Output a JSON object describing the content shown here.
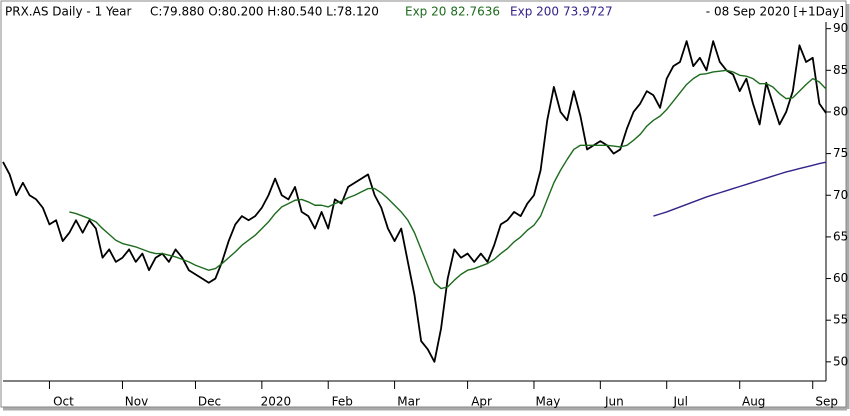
{
  "chart_data": {
    "type": "line",
    "title": "PRX.AS Daily - 1 Year",
    "ohlc": "C:79.880 O:80.200 H:80.540 L:78.120",
    "date": "- 08 Sep 2020",
    "period": "[+1Day]",
    "categories": [
      null,
      null,
      null,
      null,
      null,
      null,
      null,
      "Oct",
      null,
      null,
      null,
      null,
      null,
      null,
      null,
      null,
      null,
      null,
      "Nov",
      null,
      null,
      null,
      null,
      null,
      null,
      null,
      null,
      null,
      null,
      "Dec",
      null,
      null,
      null,
      null,
      null,
      null,
      null,
      null,
      null,
      "2020",
      null,
      null,
      null,
      null,
      null,
      null,
      null,
      null,
      null,
      "Feb",
      null,
      null,
      null,
      null,
      null,
      null,
      null,
      null,
      null,
      "Mar",
      null,
      null,
      null,
      null,
      null,
      null,
      null,
      null,
      null,
      null,
      "Apr",
      null,
      null,
      null,
      null,
      null,
      null,
      null,
      null,
      null,
      "May",
      null,
      null,
      null,
      null,
      null,
      null,
      null,
      null,
      null,
      "Jun",
      null,
      null,
      null,
      null,
      null,
      null,
      null,
      null,
      null,
      "Jul",
      null,
      null,
      null,
      null,
      null,
      null,
      null,
      null,
      null,
      null,
      "Aug",
      null,
      null,
      null,
      null,
      null,
      null,
      null,
      null,
      null,
      null,
      "Sep",
      null,
      null
    ],
    "series": [
      {
        "color": "#000000",
        "values": [
          74,
          72.5,
          70,
          71.5,
          70,
          69.5,
          68.5,
          66.5,
          67,
          64.5,
          65.5,
          67,
          65.5,
          67,
          66,
          62.5,
          63.5,
          62,
          62.5,
          63.5,
          62,
          63,
          61,
          62.5,
          63,
          62,
          63.5,
          62.5,
          61,
          60.5,
          60,
          59.5,
          60,
          62,
          64.5,
          66.5,
          67.5,
          67,
          67.5,
          68.5,
          70,
          72,
          70,
          69.5,
          71,
          68,
          67.5,
          66,
          68,
          66,
          69.5,
          69,
          71,
          71.5,
          72,
          72.5,
          70,
          68.5,
          66,
          64.5,
          66,
          62,
          58,
          52.5,
          51.5,
          50,
          54,
          60,
          63.5,
          62.5,
          63,
          62,
          63,
          62,
          64,
          66.5,
          67,
          68,
          67.5,
          69,
          70,
          73,
          79,
          83,
          80,
          79,
          82.5,
          79.5,
          75.5,
          76,
          76.5,
          76,
          75,
          75.5,
          78,
          80,
          81,
          82.5,
          82,
          80.5,
          84,
          85.5,
          86,
          88.5,
          85.5,
          86.5,
          85,
          88.5,
          86,
          85,
          84.5,
          82.5,
          84,
          81,
          78.5,
          83.5,
          81,
          78.5,
          80,
          82.5,
          88,
          86,
          86.5,
          81,
          79.88
        ]
      },
      {
        "name": "Exp 20",
        "value_label": "82.7636",
        "color": "#1e6b1e",
        "values": [
          null,
          null,
          null,
          null,
          null,
          null,
          null,
          null,
          null,
          null,
          68,
          67.8,
          67.5,
          67.2,
          66.8,
          66,
          65.3,
          64.6,
          64.2,
          64,
          63.8,
          63.5,
          63.2,
          63,
          63,
          62.8,
          62.6,
          62.3,
          62,
          61.6,
          61.3,
          61,
          61.2,
          61.8,
          62.5,
          63.2,
          64,
          64.6,
          65.2,
          66,
          66.8,
          67.8,
          68.6,
          69,
          69.4,
          69.5,
          69.2,
          68.8,
          68.8,
          68.6,
          69,
          69.3,
          69.7,
          70,
          70.4,
          70.8,
          70.8,
          70.3,
          69.6,
          68.8,
          68,
          67,
          65.5,
          63.5,
          61.5,
          59.5,
          58.8,
          59,
          59.8,
          60.5,
          61,
          61.2,
          61.5,
          61.8,
          62.3,
          63,
          63.6,
          64.4,
          65,
          65.8,
          66.4,
          67.5,
          69.5,
          71.5,
          73,
          74.3,
          75.5,
          76,
          76,
          76,
          76,
          76,
          75.9,
          75.8,
          76,
          76.6,
          77.3,
          78.3,
          79,
          79.5,
          80.3,
          81.3,
          82.3,
          83.3,
          84,
          84.5,
          84.6,
          84.8,
          84.9,
          85,
          84.8,
          84.4,
          84.3,
          84,
          83.4,
          83.4,
          83,
          82.2,
          81.6,
          81.7,
          82.5,
          83.3,
          84,
          83.6,
          82.7636
        ]
      },
      {
        "name": "Exp 200",
        "value_label": "73.9727",
        "color": "#35228a",
        "values": [
          null,
          null,
          null,
          null,
          null,
          null,
          null,
          null,
          null,
          null,
          null,
          null,
          null,
          null,
          null,
          null,
          null,
          null,
          null,
          null,
          null,
          null,
          null,
          null,
          null,
          null,
          null,
          null,
          null,
          null,
          null,
          null,
          null,
          null,
          null,
          null,
          null,
          null,
          null,
          null,
          null,
          null,
          null,
          null,
          null,
          null,
          null,
          null,
          null,
          null,
          null,
          null,
          null,
          null,
          null,
          null,
          null,
          null,
          null,
          null,
          null,
          null,
          null,
          null,
          null,
          null,
          null,
          null,
          null,
          null,
          null,
          null,
          null,
          null,
          null,
          null,
          null,
          null,
          null,
          null,
          null,
          null,
          null,
          null,
          null,
          null,
          null,
          null,
          null,
          null,
          null,
          null,
          null,
          null,
          null,
          null,
          null,
          null,
          67.5,
          67.75,
          68,
          68.3,
          68.6,
          68.9,
          69.2,
          69.5,
          69.8,
          70.05,
          70.3,
          70.55,
          70.8,
          71.05,
          71.3,
          71.55,
          71.8,
          72.05,
          72.3,
          72.55,
          72.8,
          73,
          73.2,
          73.4,
          73.6,
          73.8,
          73.9727
        ]
      }
    ],
    "ylim": [
      47.7,
      90.8
    ],
    "yticks": [
      50,
      55,
      60,
      65,
      70,
      75,
      80,
      85,
      90
    ],
    "grid": false
  }
}
